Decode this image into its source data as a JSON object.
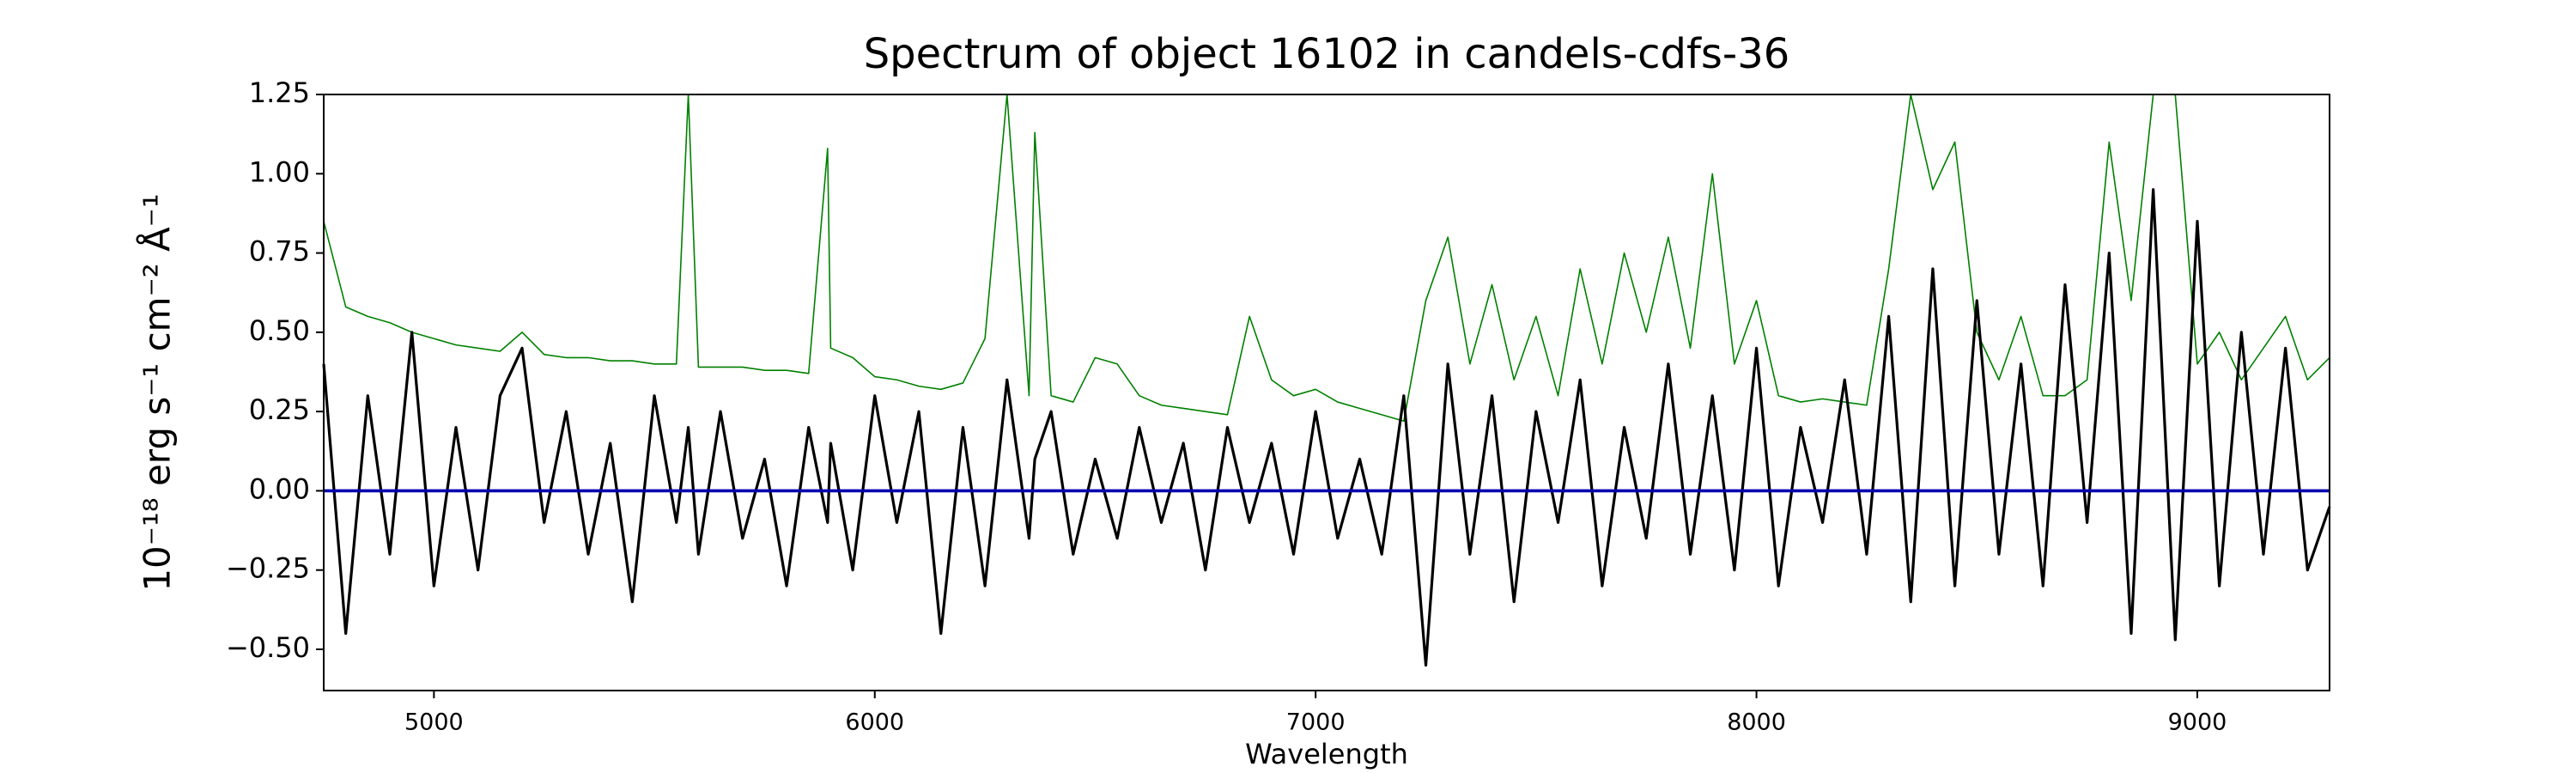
{
  "chart_data": {
    "type": "line",
    "title": "Spectrum of object 16102 in candels-cdfs-36",
    "xlabel": "Wavelength",
    "ylabel": "10⁻¹⁸ erg s⁻¹ cm⁻² Å⁻¹",
    "xlim": [
      4750,
      9300
    ],
    "ylim": [
      -0.63,
      1.25
    ],
    "xticks": [
      5000,
      6000,
      7000,
      8000,
      9000
    ],
    "yticks": [
      {
        "value": -0.5,
        "label": "−0.50"
      },
      {
        "value": -0.25,
        "label": "−0.25"
      },
      {
        "value": 0,
        "label": "0.00"
      },
      0.25,
      {
        "value": 0.5,
        "label": "0.50"
      },
      0.75,
      {
        "value": 1,
        "label": "1.00"
      },
      1.25
    ],
    "x": [
      4750,
      4800,
      4850,
      4900,
      4950,
      5000,
      5050,
      5100,
      5150,
      5200,
      5250,
      5300,
      5350,
      5400,
      5450,
      5500,
      5550,
      5577,
      5600,
      5650,
      5700,
      5750,
      5800,
      5850,
      5893,
      5900,
      5950,
      6000,
      6050,
      6100,
      6150,
      6200,
      6250,
      6300,
      6350,
      6363,
      6400,
      6450,
      6500,
      6550,
      6600,
      6650,
      6700,
      6750,
      6800,
      6850,
      6900,
      6950,
      7000,
      7050,
      7100,
      7150,
      7200,
      7250,
      7300,
      7350,
      7400,
      7450,
      7500,
      7550,
      7600,
      7650,
      7700,
      7750,
      7800,
      7850,
      7900,
      7950,
      8000,
      8050,
      8100,
      8150,
      8200,
      8250,
      8300,
      8350,
      8400,
      8450,
      8500,
      8550,
      8600,
      8650,
      8700,
      8750,
      8800,
      8850,
      8900,
      8950,
      9000,
      9050,
      9100,
      9150,
      9200,
      9250,
      9300
    ],
    "series": [
      {
        "color": "#008000",
        "width": 1.6,
        "values": [
          0.85,
          0.58,
          0.55,
          0.53,
          0.5,
          0.48,
          0.46,
          0.45,
          0.44,
          0.5,
          0.43,
          0.42,
          0.42,
          0.41,
          0.41,
          0.4,
          0.4,
          1.25,
          0.39,
          0.39,
          0.39,
          0.38,
          0.38,
          0.37,
          1.08,
          0.45,
          0.42,
          0.36,
          0.35,
          0.33,
          0.32,
          0.34,
          0.48,
          1.25,
          0.3,
          1.13,
          0.3,
          0.28,
          0.42,
          0.4,
          0.3,
          0.27,
          0.26,
          0.25,
          0.24,
          0.55,
          0.35,
          0.3,
          0.32,
          0.28,
          0.26,
          0.24,
          0.22,
          0.6,
          0.8,
          0.4,
          0.65,
          0.35,
          0.55,
          0.3,
          0.7,
          0.4,
          0.75,
          0.5,
          0.8,
          0.45,
          1.0,
          0.4,
          0.6,
          0.3,
          0.28,
          0.29,
          0.28,
          0.27,
          0.7,
          1.25,
          0.95,
          1.1,
          0.5,
          0.35,
          0.55,
          0.3,
          0.3,
          0.35,
          1.1,
          0.6,
          1.25,
          1.25,
          0.4,
          0.5,
          0.35,
          0.45,
          0.55,
          0.35,
          0.42
        ]
      },
      {
        "color": "#000000",
        "width": 3.2,
        "values": [
          0.4,
          -0.45,
          0.3,
          -0.2,
          0.5,
          -0.3,
          0.2,
          -0.25,
          0.3,
          0.45,
          -0.1,
          0.25,
          -0.2,
          0.15,
          -0.35,
          0.3,
          -0.1,
          0.2,
          -0.2,
          0.25,
          -0.15,
          0.1,
          -0.3,
          0.2,
          -0.1,
          0.15,
          -0.25,
          0.3,
          -0.1,
          0.25,
          -0.45,
          0.2,
          -0.3,
          0.35,
          -0.15,
          0.1,
          0.25,
          -0.2,
          0.1,
          -0.15,
          0.2,
          -0.1,
          0.15,
          -0.25,
          0.2,
          -0.1,
          0.15,
          -0.2,
          0.25,
          -0.15,
          0.1,
          -0.2,
          0.3,
          -0.55,
          0.4,
          -0.2,
          0.3,
          -0.35,
          0.25,
          -0.1,
          0.35,
          -0.3,
          0.2,
          -0.15,
          0.4,
          -0.2,
          0.3,
          -0.25,
          0.45,
          -0.3,
          0.2,
          -0.1,
          0.35,
          -0.2,
          0.55,
          -0.35,
          0.7,
          -0.3,
          0.6,
          -0.2,
          0.4,
          -0.3,
          0.65,
          -0.1,
          0.75,
          -0.45,
          0.95,
          -0.47,
          0.85,
          -0.3,
          0.5,
          -0.2,
          0.45,
          -0.25,
          -0.05
        ]
      },
      {
        "color": "#0000b0",
        "width": 3.6,
        "values": [
          0,
          0,
          0,
          0,
          0,
          0,
          0,
          0,
          0,
          0,
          0,
          0,
          0,
          0,
          0,
          0,
          0,
          0,
          0,
          0,
          0,
          0,
          0,
          0,
          0,
          0,
          0,
          0,
          0,
          0,
          0,
          0,
          0,
          0,
          0,
          0,
          0,
          0,
          0,
          0,
          0,
          0,
          0,
          0,
          0,
          0,
          0,
          0,
          0,
          0,
          0,
          0,
          0,
          0,
          0,
          0,
          0,
          0,
          0,
          0,
          0,
          0,
          0,
          0,
          0,
          0,
          0,
          0,
          0,
          0,
          0,
          0,
          0,
          0,
          0,
          0,
          0,
          0,
          0,
          0,
          0,
          0,
          0,
          0,
          0,
          0,
          0,
          0,
          0,
          0,
          0,
          0,
          0,
          0,
          0
        ]
      }
    ]
  }
}
